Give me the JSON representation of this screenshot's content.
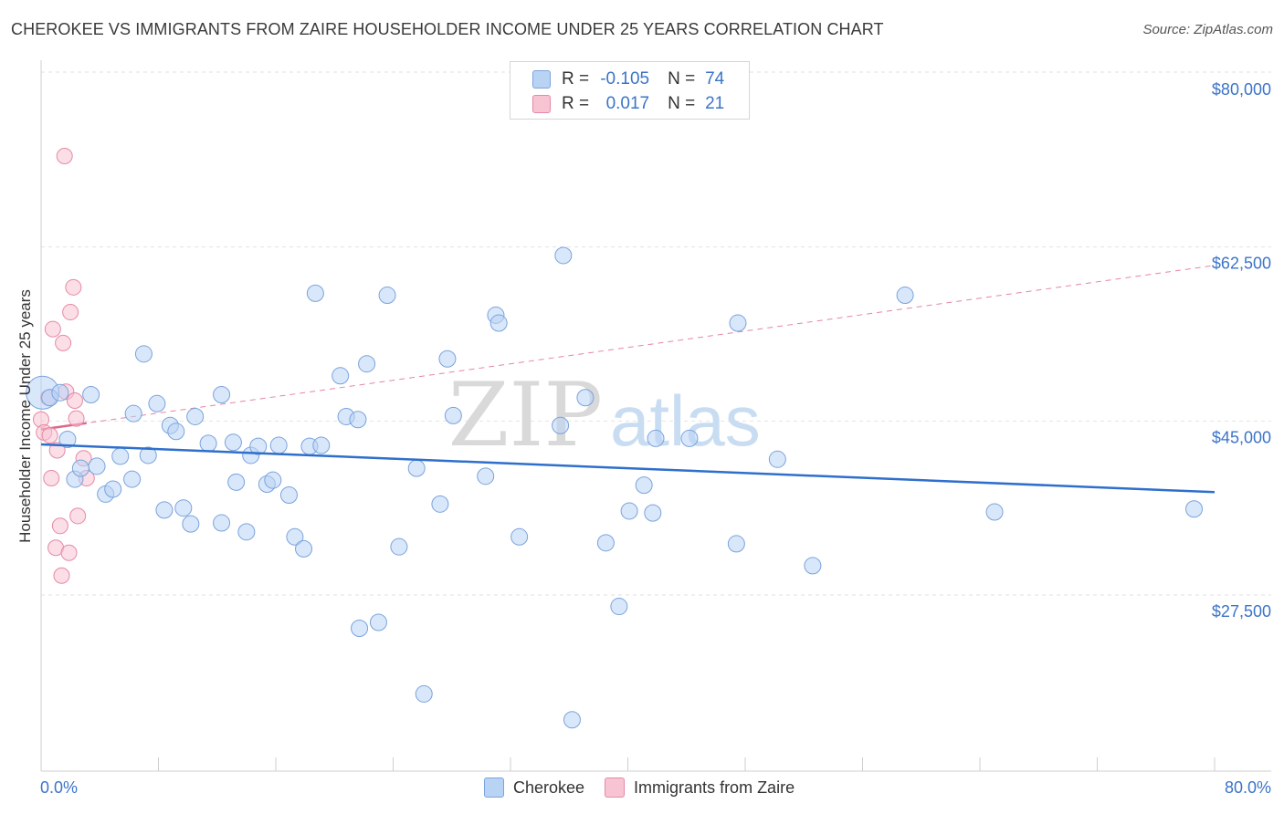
{
  "header": {
    "title": "CHEROKEE VS IMMIGRANTS FROM ZAIRE HOUSEHOLDER INCOME UNDER 25 YEARS CORRELATION CHART",
    "source": "Source: ZipAtlas.com"
  },
  "legend": {
    "rows": [
      {
        "r_label": "R =",
        "r_value": "-0.105",
        "n_label": "N =",
        "n_value": "74"
      },
      {
        "r_label": "R =",
        "r_value": "0.017",
        "n_label": "N =",
        "n_value": "21"
      }
    ]
  },
  "bottom_legend": {
    "items": [
      {
        "label": "Cherokee"
      },
      {
        "label": "Immigrants from Zaire"
      }
    ]
  },
  "watermark": {
    "zip": "ZIP",
    "atlas": "atlas"
  },
  "colors": {
    "blue_fill": "#b9d3f5",
    "blue_stroke": "#7aa3dc",
    "blue_line": "#2f6fcc",
    "pink_fill": "#f8c3d2",
    "pink_stroke": "#e58aa6",
    "pink_line": "#e0678c",
    "axis_text": "#3b74c8"
  },
  "chart_data": {
    "type": "scatter",
    "title": "CHEROKEE VS IMMIGRANTS FROM ZAIRE HOUSEHOLDER INCOME UNDER 25 YEARS CORRELATION CHART",
    "xlabel": "",
    "ylabel": "Householder Income Under 25 years",
    "xlim": [
      0,
      80
    ],
    "ylim": [
      10000,
      82500
    ],
    "x_tick_labels": [
      "0.0%",
      "80.0%"
    ],
    "y_ticks": [
      {
        "value": 80000,
        "label": "$80,000"
      },
      {
        "value": 62500,
        "label": "$62,500"
      },
      {
        "value": 45000,
        "label": "$45,000"
      },
      {
        "value": 27500,
        "label": "$27,500"
      }
    ],
    "grid": true,
    "series": [
      {
        "name": "Cherokee",
        "R": -0.105,
        "N": 74,
        "trend": {
          "x": [
            0,
            80
          ],
          "y": [
            44300,
            39500
          ],
          "style": "solid",
          "x_range_data": [
            0,
            80
          ]
        },
        "points": [
          {
            "x": 0.1,
            "y": 49500,
            "big": true
          },
          {
            "x": 0.6,
            "y": 49000
          },
          {
            "x": 1.3,
            "y": 49500
          },
          {
            "x": 3.4,
            "y": 49300
          },
          {
            "x": 1.8,
            "y": 44800
          },
          {
            "x": 2.3,
            "y": 40800
          },
          {
            "x": 2.7,
            "y": 41900
          },
          {
            "x": 3.8,
            "y": 42100
          },
          {
            "x": 4.4,
            "y": 39300
          },
          {
            "x": 4.9,
            "y": 39800
          },
          {
            "x": 5.4,
            "y": 43100
          },
          {
            "x": 6.2,
            "y": 40800
          },
          {
            "x": 6.3,
            "y": 47400
          },
          {
            "x": 7.0,
            "y": 53400
          },
          {
            "x": 7.3,
            "y": 43200
          },
          {
            "x": 7.9,
            "y": 48400
          },
          {
            "x": 8.4,
            "y": 37700
          },
          {
            "x": 8.8,
            "y": 46200
          },
          {
            "x": 9.2,
            "y": 45600
          },
          {
            "x": 9.7,
            "y": 37900
          },
          {
            "x": 10.2,
            "y": 36300
          },
          {
            "x": 10.5,
            "y": 47100
          },
          {
            "x": 11.4,
            "y": 44400
          },
          {
            "x": 12.3,
            "y": 49300
          },
          {
            "x": 12.3,
            "y": 36400
          },
          {
            "x": 13.1,
            "y": 44500
          },
          {
            "x": 13.3,
            "y": 40500
          },
          {
            "x": 14.0,
            "y": 35500
          },
          {
            "x": 14.3,
            "y": 43200
          },
          {
            "x": 14.8,
            "y": 44100
          },
          {
            "x": 15.4,
            "y": 40300
          },
          {
            "x": 15.8,
            "y": 40700
          },
          {
            "x": 16.2,
            "y": 44200
          },
          {
            "x": 16.9,
            "y": 39200
          },
          {
            "x": 17.3,
            "y": 35000
          },
          {
            "x": 17.9,
            "y": 33800
          },
          {
            "x": 18.3,
            "y": 44100
          },
          {
            "x": 18.7,
            "y": 59500
          },
          {
            "x": 19.1,
            "y": 44200
          },
          {
            "x": 20.4,
            "y": 51200
          },
          {
            "x": 20.8,
            "y": 47100
          },
          {
            "x": 21.6,
            "y": 46800
          },
          {
            "x": 21.7,
            "y": 25800
          },
          {
            "x": 22.2,
            "y": 52400
          },
          {
            "x": 23.0,
            "y": 26400
          },
          {
            "x": 23.6,
            "y": 59300
          },
          {
            "x": 24.4,
            "y": 34000
          },
          {
            "x": 25.6,
            "y": 41900
          },
          {
            "x": 26.1,
            "y": 19200
          },
          {
            "x": 27.2,
            "y": 38300
          },
          {
            "x": 27.7,
            "y": 52900
          },
          {
            "x": 28.1,
            "y": 47200
          },
          {
            "x": 30.3,
            "y": 41100
          },
          {
            "x": 31.0,
            "y": 57300
          },
          {
            "x": 31.2,
            "y": 56500
          },
          {
            "x": 32.6,
            "y": 35000
          },
          {
            "x": 35.4,
            "y": 46200
          },
          {
            "x": 35.6,
            "y": 63300
          },
          {
            "x": 36.2,
            "y": 16600
          },
          {
            "x": 37.1,
            "y": 49000
          },
          {
            "x": 38.5,
            "y": 34400
          },
          {
            "x": 39.4,
            "y": 28000
          },
          {
            "x": 40.1,
            "y": 37600
          },
          {
            "x": 41.1,
            "y": 40200
          },
          {
            "x": 41.7,
            "y": 37400
          },
          {
            "x": 41.9,
            "y": 44900
          },
          {
            "x": 44.2,
            "y": 44900
          },
          {
            "x": 47.5,
            "y": 56500
          },
          {
            "x": 47.4,
            "y": 34300
          },
          {
            "x": 50.2,
            "y": 42800
          },
          {
            "x": 52.6,
            "y": 32100
          },
          {
            "x": 58.9,
            "y": 59300
          },
          {
            "x": 65.0,
            "y": 37500
          },
          {
            "x": 78.6,
            "y": 37800
          }
        ]
      },
      {
        "name": "Immigrants from Zaire",
        "R": 0.017,
        "N": 21,
        "trend": {
          "x": [
            0,
            80
          ],
          "y": [
            45800,
            62300
          ],
          "style": "dashed",
          "x_range_data": [
            0,
            80
          ]
        },
        "points": [
          {
            "x": 0.0,
            "y": 46800
          },
          {
            "x": 0.2,
            "y": 45500
          },
          {
            "x": 0.5,
            "y": 49000
          },
          {
            "x": 0.6,
            "y": 45200
          },
          {
            "x": 0.7,
            "y": 40900
          },
          {
            "x": 0.8,
            "y": 55900
          },
          {
            "x": 1.0,
            "y": 33900
          },
          {
            "x": 1.1,
            "y": 43700
          },
          {
            "x": 1.3,
            "y": 36100
          },
          {
            "x": 1.4,
            "y": 31100
          },
          {
            "x": 1.5,
            "y": 54500
          },
          {
            "x": 1.6,
            "y": 73300
          },
          {
            "x": 1.7,
            "y": 49600
          },
          {
            "x": 1.9,
            "y": 33400
          },
          {
            "x": 2.0,
            "y": 57600
          },
          {
            "x": 2.2,
            "y": 60100
          },
          {
            "x": 2.3,
            "y": 48700
          },
          {
            "x": 2.4,
            "y": 46900
          },
          {
            "x": 2.5,
            "y": 37100
          },
          {
            "x": 2.9,
            "y": 42900
          },
          {
            "x": 3.1,
            "y": 40900
          }
        ]
      }
    ]
  }
}
